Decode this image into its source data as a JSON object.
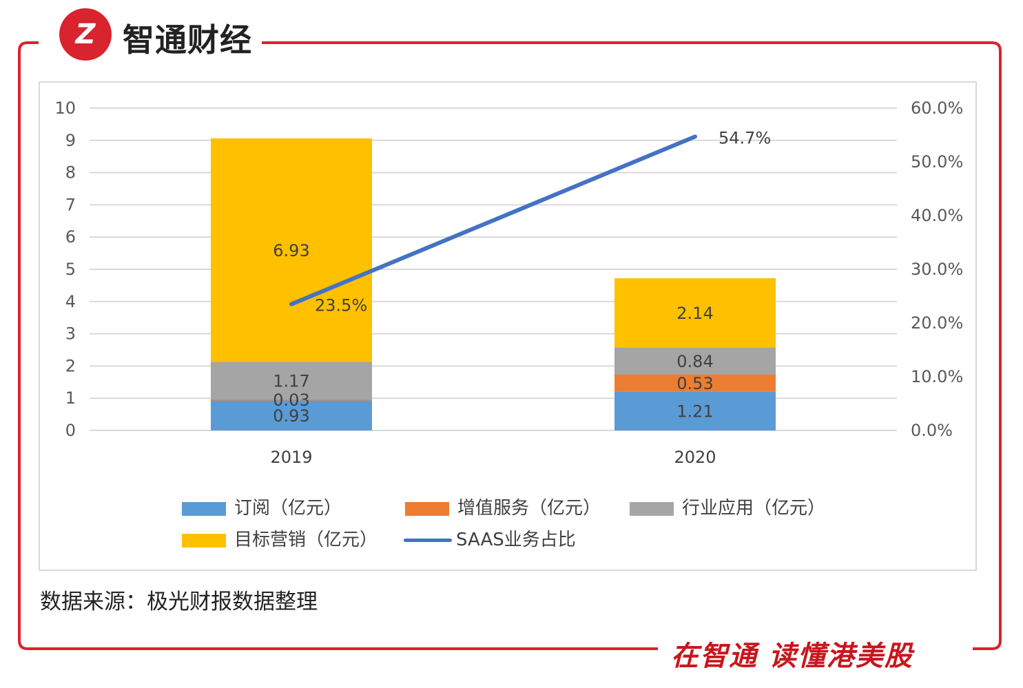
{
  "brand": {
    "logo_text": "Z",
    "name": "智通财经",
    "slogan": "在智通  读懂港美股"
  },
  "colors": {
    "brand_red": "#d9232e",
    "subscription": "#5b9bd5",
    "value_added": "#ed7d31",
    "industry": "#a5a5a5",
    "marketing": "#ffc000",
    "saas_line": "#4472c4"
  },
  "source": "数据来源：极光财报数据整理",
  "chart_data": {
    "type": "bar",
    "stacked": true,
    "categories": [
      "2019",
      "2020"
    ],
    "series": [
      {
        "name": "订阅（亿元）",
        "values": [
          0.93,
          1.21
        ],
        "labels": [
          "0.93",
          "1.21"
        ]
      },
      {
        "name": "增值服务（亿元）",
        "values": [
          0.03,
          0.53
        ],
        "labels": [
          "0.03",
          "0.53"
        ]
      },
      {
        "name": "行业应用（亿元）",
        "values": [
          1.17,
          0.84
        ],
        "labels": [
          "1.17",
          "0.84"
        ]
      },
      {
        "name": "目标营销（亿元）",
        "values": [
          6.93,
          2.14
        ],
        "labels": [
          "6.93",
          "2.14"
        ]
      }
    ],
    "line_series": {
      "name": "SAAS业务占比",
      "values": [
        23.5,
        54.7
      ],
      "labels": [
        "23.5%",
        "54.7%"
      ],
      "axis": "secondary"
    },
    "ylim": [
      0,
      10
    ],
    "y_ticks": [
      "0",
      "1",
      "2",
      "3",
      "4",
      "5",
      "6",
      "7",
      "8",
      "9",
      "10"
    ],
    "y2lim": [
      0,
      60
    ],
    "y2_ticks": [
      "0.0%",
      "10.0%",
      "20.0%",
      "30.0%",
      "40.0%",
      "50.0%",
      "60.0%"
    ],
    "grid": true,
    "legend_position": "bottom",
    "title": "",
    "xlabel": "",
    "ylabel": ""
  },
  "legend": {
    "items": [
      {
        "label": "订阅（亿元）"
      },
      {
        "label": "增值服务（亿元）"
      },
      {
        "label": "行业应用（亿元）"
      },
      {
        "label": "目标营销（亿元）"
      },
      {
        "label": "SAAS业务占比"
      }
    ]
  }
}
